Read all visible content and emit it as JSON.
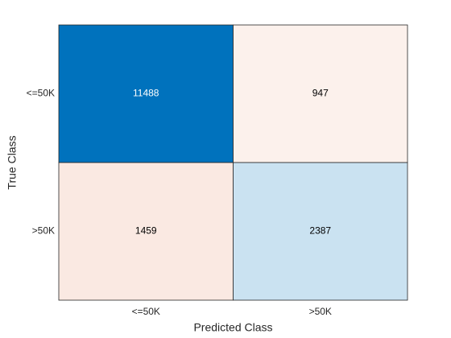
{
  "chart_data": {
    "type": "confusion_matrix",
    "xlabel": "Predicted Class",
    "ylabel": "True Class",
    "x_categories": [
      "<=50K",
      ">50K"
    ],
    "y_categories": [
      "<=50K",
      ">50K"
    ],
    "values": [
      [
        11488,
        947
      ],
      [
        1459,
        2387
      ]
    ],
    "diagonal_color": "#0072bd",
    "off_diagonal_color": "#d95319"
  }
}
